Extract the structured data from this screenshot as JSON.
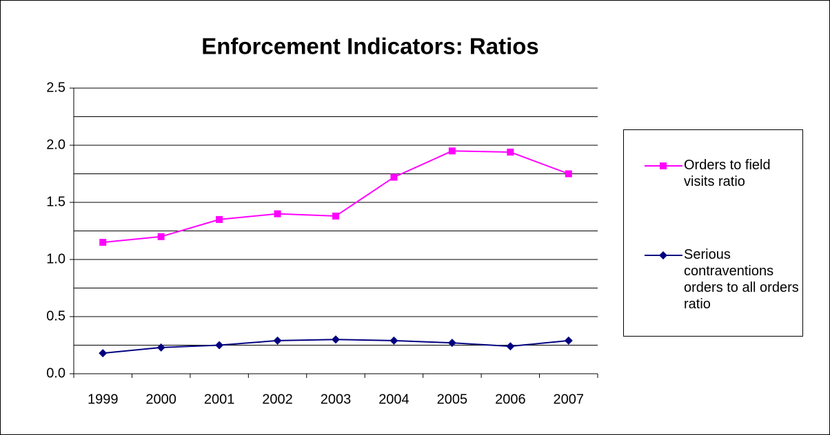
{
  "chart_data": {
    "type": "line",
    "title": "Enforcement Indicators: Ratios",
    "categories": [
      "1999",
      "2000",
      "2001",
      "2002",
      "2003",
      "2004",
      "2005",
      "2006",
      "2007"
    ],
    "series": [
      {
        "name": "Orders to field visits ratio",
        "color": "#ff00ff",
        "marker": "square",
        "values": [
          1.15,
          1.2,
          1.35,
          1.4,
          1.38,
          1.72,
          1.95,
          1.94,
          1.75
        ]
      },
      {
        "name": "Serious contraventions orders to all orders ratio",
        "color": "#000080",
        "marker": "diamond",
        "values": [
          0.18,
          0.23,
          0.25,
          0.29,
          0.3,
          0.29,
          0.27,
          0.24,
          0.29
        ]
      }
    ],
    "ylim": [
      0,
      2.5
    ],
    "yticks": [
      {
        "value": 0,
        "label": "0.0"
      },
      {
        "value": 0.5,
        "label": "0.5"
      },
      {
        "value": 1,
        "label": "1.0"
      },
      {
        "value": 1.5,
        "label": "1.5"
      },
      {
        "value": 2,
        "label": "2.0"
      },
      {
        "value": 2.5,
        "label": "2.5"
      }
    ],
    "minor_yticks": [
      0.25,
      0.75,
      1.25,
      1.75,
      2.25
    ],
    "grid": true,
    "legend": "right"
  }
}
